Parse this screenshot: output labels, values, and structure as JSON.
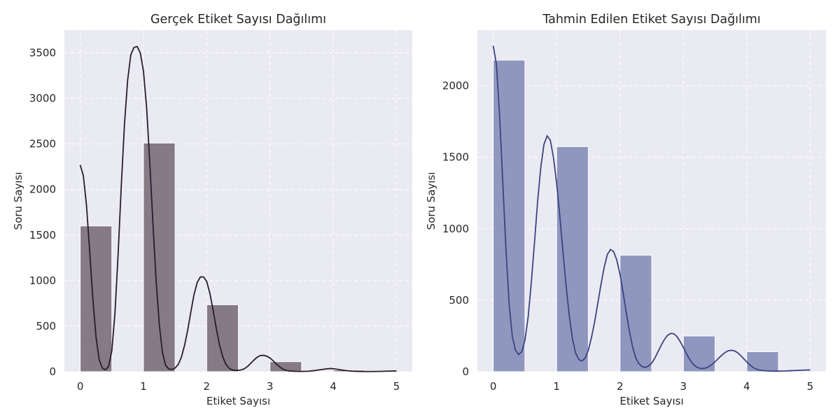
{
  "chart_data": [
    {
      "type": "bar",
      "title": "Gerçek Etiket Sayısı Dağılımı",
      "xlabel": "Etiket Sayısı",
      "ylabel": "Soru Sayısı",
      "xlim": [
        -0.25,
        5.25
      ],
      "ylim": [
        0,
        3750
      ],
      "xticks": [
        0,
        1,
        2,
        3,
        4,
        5
      ],
      "yticks": [
        0,
        500,
        1000,
        1500,
        2000,
        2500,
        3000,
        3500
      ],
      "bins": [
        {
          "x0": 0,
          "x1": 0.5,
          "value": 1600
        },
        {
          "x0": 1,
          "x1": 1.5,
          "value": 2510
        },
        {
          "x0": 2,
          "x1": 2.5,
          "value": 735
        },
        {
          "x0": 3,
          "x1": 3.5,
          "value": 110
        },
        {
          "x0": 4,
          "x1": 4.5,
          "value": 18
        },
        {
          "x0": 4.5,
          "x1": 5.0,
          "value": 4
        }
      ],
      "kde": [
        [
          0,
          2270
        ],
        [
          0.05,
          2150
        ],
        [
          0.1,
          1820
        ],
        [
          0.15,
          1320
        ],
        [
          0.2,
          800
        ],
        [
          0.25,
          380
        ],
        [
          0.3,
          130
        ],
        [
          0.35,
          40
        ],
        [
          0.4,
          20
        ],
        [
          0.45,
          60
        ],
        [
          0.5,
          230
        ],
        [
          0.55,
          650
        ],
        [
          0.6,
          1300
        ],
        [
          0.65,
          2050
        ],
        [
          0.7,
          2720
        ],
        [
          0.75,
          3200
        ],
        [
          0.8,
          3480
        ],
        [
          0.85,
          3560
        ],
        [
          0.9,
          3570
        ],
        [
          0.95,
          3500
        ],
        [
          1.0,
          3300
        ],
        [
          1.05,
          2900
        ],
        [
          1.1,
          2300
        ],
        [
          1.15,
          1620
        ],
        [
          1.2,
          1000
        ],
        [
          1.25,
          520
        ],
        [
          1.3,
          210
        ],
        [
          1.35,
          70
        ],
        [
          1.4,
          30
        ],
        [
          1.45,
          25
        ],
        [
          1.5,
          40
        ],
        [
          1.55,
          80
        ],
        [
          1.6,
          160
        ],
        [
          1.65,
          290
        ],
        [
          1.7,
          460
        ],
        [
          1.75,
          660
        ],
        [
          1.8,
          850
        ],
        [
          1.85,
          980
        ],
        [
          1.9,
          1040
        ],
        [
          1.95,
          1040
        ],
        [
          2.0,
          990
        ],
        [
          2.05,
          860
        ],
        [
          2.1,
          680
        ],
        [
          2.15,
          480
        ],
        [
          2.2,
          300
        ],
        [
          2.25,
          170
        ],
        [
          2.3,
          85
        ],
        [
          2.35,
          40
        ],
        [
          2.4,
          20
        ],
        [
          2.45,
          15
        ],
        [
          2.5,
          15
        ],
        [
          2.55,
          20
        ],
        [
          2.6,
          35
        ],
        [
          2.65,
          60
        ],
        [
          2.7,
          95
        ],
        [
          2.75,
          130
        ],
        [
          2.8,
          160
        ],
        [
          2.85,
          178
        ],
        [
          2.9,
          180
        ],
        [
          2.95,
          170
        ],
        [
          3.0,
          150
        ],
        [
          3.05,
          120
        ],
        [
          3.1,
          85
        ],
        [
          3.15,
          55
        ],
        [
          3.2,
          30
        ],
        [
          3.25,
          15
        ],
        [
          3.3,
          8
        ],
        [
          3.4,
          4
        ],
        [
          3.5,
          3
        ],
        [
          3.6,
          5
        ],
        [
          3.7,
          12
        ],
        [
          3.8,
          22
        ],
        [
          3.9,
          32
        ],
        [
          3.95,
          35
        ],
        [
          4.0,
          33
        ],
        [
          4.05,
          28
        ],
        [
          4.1,
          22
        ],
        [
          4.2,
          12
        ],
        [
          4.3,
          6
        ],
        [
          4.4,
          3
        ],
        [
          4.5,
          2
        ],
        [
          4.6,
          2
        ],
        [
          4.7,
          3
        ],
        [
          4.8,
          5
        ],
        [
          4.9,
          7
        ],
        [
          5.0,
          8
        ]
      ],
      "bar_color": "#867a85",
      "line_color": "#2b1a2e",
      "grid": true,
      "legend": "none"
    },
    {
      "type": "bar",
      "title": "Tahmin Edilen Etiket Sayısı Dağılımı",
      "xlabel": "Etiket Sayısı",
      "ylabel": "Soru Sayısı",
      "xlim": [
        -0.25,
        5.25
      ],
      "ylim": [
        0,
        2390
      ],
      "xticks": [
        0,
        1,
        2,
        3,
        4,
        5
      ],
      "yticks": [
        0,
        500,
        1000,
        1500,
        2000
      ],
      "bins": [
        {
          "x0": 0,
          "x1": 0.5,
          "value": 2180
        },
        {
          "x0": 1,
          "x1": 1.5,
          "value": 1575
        },
        {
          "x0": 2,
          "x1": 2.5,
          "value": 815
        },
        {
          "x0": 3,
          "x1": 3.5,
          "value": 250
        },
        {
          "x0": 4,
          "x1": 4.5,
          "value": 140
        }
      ],
      "kde": [
        [
          0,
          2280
        ],
        [
          0.05,
          2150
        ],
        [
          0.1,
          1800
        ],
        [
          0.15,
          1330
        ],
        [
          0.2,
          860
        ],
        [
          0.25,
          480
        ],
        [
          0.3,
          250
        ],
        [
          0.35,
          150
        ],
        [
          0.4,
          120
        ],
        [
          0.45,
          140
        ],
        [
          0.5,
          220
        ],
        [
          0.55,
          380
        ],
        [
          0.6,
          620
        ],
        [
          0.65,
          900
        ],
        [
          0.7,
          1190
        ],
        [
          0.75,
          1430
        ],
        [
          0.8,
          1590
        ],
        [
          0.85,
          1650
        ],
        [
          0.9,
          1620
        ],
        [
          0.95,
          1500
        ],
        [
          1.0,
          1320
        ],
        [
          1.05,
          1090
        ],
        [
          1.1,
          840
        ],
        [
          1.15,
          600
        ],
        [
          1.2,
          390
        ],
        [
          1.25,
          230
        ],
        [
          1.3,
          130
        ],
        [
          1.35,
          85
        ],
        [
          1.4,
          75
        ],
        [
          1.45,
          95
        ],
        [
          1.5,
          150
        ],
        [
          1.55,
          240
        ],
        [
          1.6,
          350
        ],
        [
          1.65,
          480
        ],
        [
          1.7,
          610
        ],
        [
          1.75,
          730
        ],
        [
          1.8,
          820
        ],
        [
          1.85,
          855
        ],
        [
          1.9,
          840
        ],
        [
          1.95,
          780
        ],
        [
          2.0,
          680
        ],
        [
          2.05,
          550
        ],
        [
          2.1,
          410
        ],
        [
          2.15,
          280
        ],
        [
          2.2,
          170
        ],
        [
          2.25,
          95
        ],
        [
          2.3,
          55
        ],
        [
          2.35,
          35
        ],
        [
          2.4,
          30
        ],
        [
          2.45,
          40
        ],
        [
          2.5,
          60
        ],
        [
          2.55,
          95
        ],
        [
          2.6,
          140
        ],
        [
          2.65,
          185
        ],
        [
          2.7,
          225
        ],
        [
          2.75,
          255
        ],
        [
          2.8,
          268
        ],
        [
          2.85,
          265
        ],
        [
          2.9,
          245
        ],
        [
          2.95,
          210
        ],
        [
          3.0,
          170
        ],
        [
          3.05,
          125
        ],
        [
          3.1,
          85
        ],
        [
          3.15,
          55
        ],
        [
          3.2,
          35
        ],
        [
          3.25,
          25
        ],
        [
          3.3,
          22
        ],
        [
          3.35,
          25
        ],
        [
          3.4,
          35
        ],
        [
          3.45,
          50
        ],
        [
          3.5,
          70
        ],
        [
          3.55,
          92
        ],
        [
          3.6,
          113
        ],
        [
          3.65,
          132
        ],
        [
          3.7,
          145
        ],
        [
          3.75,
          150
        ],
        [
          3.8,
          147
        ],
        [
          3.85,
          135
        ],
        [
          3.9,
          115
        ],
        [
          3.95,
          92
        ],
        [
          4.0,
          68
        ],
        [
          4.05,
          47
        ],
        [
          4.1,
          30
        ],
        [
          4.15,
          18
        ],
        [
          4.2,
          11
        ],
        [
          4.3,
          6
        ],
        [
          4.4,
          4
        ],
        [
          4.5,
          4
        ],
        [
          4.6,
          5
        ],
        [
          4.7,
          7
        ],
        [
          4.8,
          9
        ],
        [
          4.9,
          11
        ],
        [
          5.0,
          12
        ]
      ],
      "bar_color": "#9097bf",
      "line_color": "#3b4382",
      "grid": true,
      "legend": "none"
    }
  ]
}
